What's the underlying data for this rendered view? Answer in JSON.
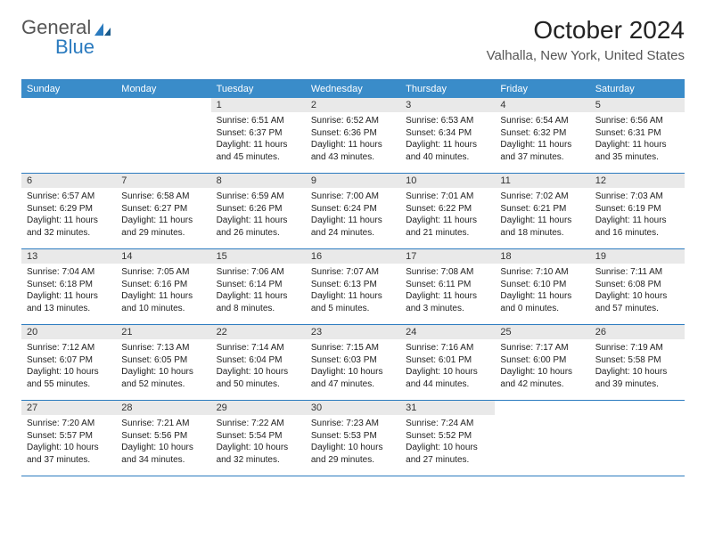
{
  "logo": {
    "word1": "General",
    "word2": "Blue"
  },
  "colors": {
    "header_bar": "#3a8cc9",
    "divider": "#2b7bbf",
    "daynum_bg": "#e9e9e9",
    "text": "#333333",
    "logo_blue": "#2b7bbf"
  },
  "title": "October 2024",
  "location": "Valhalla, New York, United States",
  "weekdays": [
    "Sunday",
    "Monday",
    "Tuesday",
    "Wednesday",
    "Thursday",
    "Friday",
    "Saturday"
  ],
  "weeks": [
    [
      {
        "n": "",
        "sr": "",
        "ss": "",
        "dl": "",
        "empty": true
      },
      {
        "n": "",
        "sr": "",
        "ss": "",
        "dl": "",
        "empty": true
      },
      {
        "n": "1",
        "sr": "Sunrise: 6:51 AM",
        "ss": "Sunset: 6:37 PM",
        "dl": "Daylight: 11 hours and 45 minutes."
      },
      {
        "n": "2",
        "sr": "Sunrise: 6:52 AM",
        "ss": "Sunset: 6:36 PM",
        "dl": "Daylight: 11 hours and 43 minutes."
      },
      {
        "n": "3",
        "sr": "Sunrise: 6:53 AM",
        "ss": "Sunset: 6:34 PM",
        "dl": "Daylight: 11 hours and 40 minutes."
      },
      {
        "n": "4",
        "sr": "Sunrise: 6:54 AM",
        "ss": "Sunset: 6:32 PM",
        "dl": "Daylight: 11 hours and 37 minutes."
      },
      {
        "n": "5",
        "sr": "Sunrise: 6:56 AM",
        "ss": "Sunset: 6:31 PM",
        "dl": "Daylight: 11 hours and 35 minutes."
      }
    ],
    [
      {
        "n": "6",
        "sr": "Sunrise: 6:57 AM",
        "ss": "Sunset: 6:29 PM",
        "dl": "Daylight: 11 hours and 32 minutes."
      },
      {
        "n": "7",
        "sr": "Sunrise: 6:58 AM",
        "ss": "Sunset: 6:27 PM",
        "dl": "Daylight: 11 hours and 29 minutes."
      },
      {
        "n": "8",
        "sr": "Sunrise: 6:59 AM",
        "ss": "Sunset: 6:26 PM",
        "dl": "Daylight: 11 hours and 26 minutes."
      },
      {
        "n": "9",
        "sr": "Sunrise: 7:00 AM",
        "ss": "Sunset: 6:24 PM",
        "dl": "Daylight: 11 hours and 24 minutes."
      },
      {
        "n": "10",
        "sr": "Sunrise: 7:01 AM",
        "ss": "Sunset: 6:22 PM",
        "dl": "Daylight: 11 hours and 21 minutes."
      },
      {
        "n": "11",
        "sr": "Sunrise: 7:02 AM",
        "ss": "Sunset: 6:21 PM",
        "dl": "Daylight: 11 hours and 18 minutes."
      },
      {
        "n": "12",
        "sr": "Sunrise: 7:03 AM",
        "ss": "Sunset: 6:19 PM",
        "dl": "Daylight: 11 hours and 16 minutes."
      }
    ],
    [
      {
        "n": "13",
        "sr": "Sunrise: 7:04 AM",
        "ss": "Sunset: 6:18 PM",
        "dl": "Daylight: 11 hours and 13 minutes."
      },
      {
        "n": "14",
        "sr": "Sunrise: 7:05 AM",
        "ss": "Sunset: 6:16 PM",
        "dl": "Daylight: 11 hours and 10 minutes."
      },
      {
        "n": "15",
        "sr": "Sunrise: 7:06 AM",
        "ss": "Sunset: 6:14 PM",
        "dl": "Daylight: 11 hours and 8 minutes."
      },
      {
        "n": "16",
        "sr": "Sunrise: 7:07 AM",
        "ss": "Sunset: 6:13 PM",
        "dl": "Daylight: 11 hours and 5 minutes."
      },
      {
        "n": "17",
        "sr": "Sunrise: 7:08 AM",
        "ss": "Sunset: 6:11 PM",
        "dl": "Daylight: 11 hours and 3 minutes."
      },
      {
        "n": "18",
        "sr": "Sunrise: 7:10 AM",
        "ss": "Sunset: 6:10 PM",
        "dl": "Daylight: 11 hours and 0 minutes."
      },
      {
        "n": "19",
        "sr": "Sunrise: 7:11 AM",
        "ss": "Sunset: 6:08 PM",
        "dl": "Daylight: 10 hours and 57 minutes."
      }
    ],
    [
      {
        "n": "20",
        "sr": "Sunrise: 7:12 AM",
        "ss": "Sunset: 6:07 PM",
        "dl": "Daylight: 10 hours and 55 minutes."
      },
      {
        "n": "21",
        "sr": "Sunrise: 7:13 AM",
        "ss": "Sunset: 6:05 PM",
        "dl": "Daylight: 10 hours and 52 minutes."
      },
      {
        "n": "22",
        "sr": "Sunrise: 7:14 AM",
        "ss": "Sunset: 6:04 PM",
        "dl": "Daylight: 10 hours and 50 minutes."
      },
      {
        "n": "23",
        "sr": "Sunrise: 7:15 AM",
        "ss": "Sunset: 6:03 PM",
        "dl": "Daylight: 10 hours and 47 minutes."
      },
      {
        "n": "24",
        "sr": "Sunrise: 7:16 AM",
        "ss": "Sunset: 6:01 PM",
        "dl": "Daylight: 10 hours and 44 minutes."
      },
      {
        "n": "25",
        "sr": "Sunrise: 7:17 AM",
        "ss": "Sunset: 6:00 PM",
        "dl": "Daylight: 10 hours and 42 minutes."
      },
      {
        "n": "26",
        "sr": "Sunrise: 7:19 AM",
        "ss": "Sunset: 5:58 PM",
        "dl": "Daylight: 10 hours and 39 minutes."
      }
    ],
    [
      {
        "n": "27",
        "sr": "Sunrise: 7:20 AM",
        "ss": "Sunset: 5:57 PM",
        "dl": "Daylight: 10 hours and 37 minutes."
      },
      {
        "n": "28",
        "sr": "Sunrise: 7:21 AM",
        "ss": "Sunset: 5:56 PM",
        "dl": "Daylight: 10 hours and 34 minutes."
      },
      {
        "n": "29",
        "sr": "Sunrise: 7:22 AM",
        "ss": "Sunset: 5:54 PM",
        "dl": "Daylight: 10 hours and 32 minutes."
      },
      {
        "n": "30",
        "sr": "Sunrise: 7:23 AM",
        "ss": "Sunset: 5:53 PM",
        "dl": "Daylight: 10 hours and 29 minutes."
      },
      {
        "n": "31",
        "sr": "Sunrise: 7:24 AM",
        "ss": "Sunset: 5:52 PM",
        "dl": "Daylight: 10 hours and 27 minutes."
      },
      {
        "n": "",
        "sr": "",
        "ss": "",
        "dl": "",
        "empty": true
      },
      {
        "n": "",
        "sr": "",
        "ss": "",
        "dl": "",
        "empty": true
      }
    ]
  ]
}
